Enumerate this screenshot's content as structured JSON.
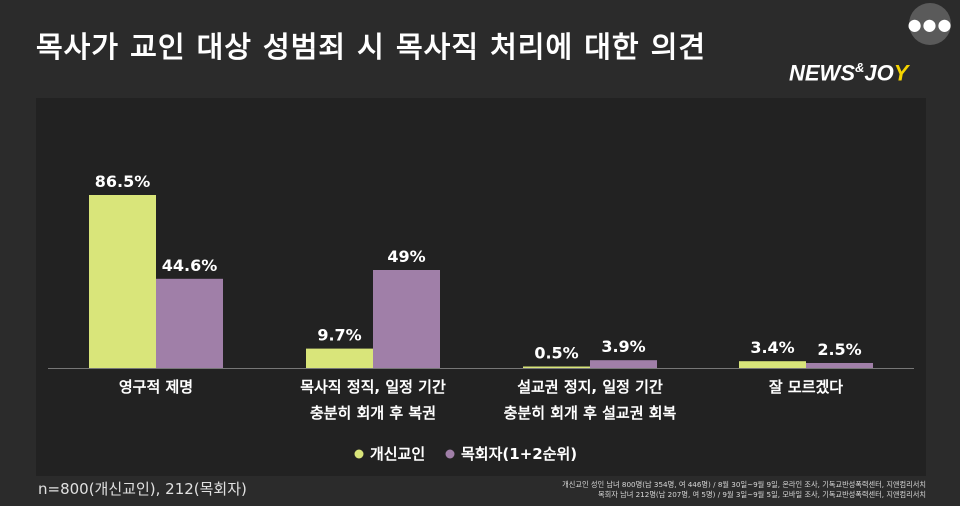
{
  "title": "목사가 교인 대상 성범죄 시 목사직 처리에 대한 의견",
  "logo": {
    "main": "NEWS",
    "amp": "&",
    "end1": "JO",
    "end2": "Y"
  },
  "menu_icon": "more-dots-icon",
  "colors": {
    "series1": "#d9e57a",
    "series2": "#a07fa8",
    "background": "#2b2b2b",
    "panel": "#222222"
  },
  "chart_data": {
    "type": "bar",
    "title": "목사가 교인 대상 성범죄 시 목사직 처리에 대한 의견",
    "categories": [
      [
        "영구적 제명"
      ],
      [
        "목사직 정직, 일정 기간",
        "충분히 회개 후 복권"
      ],
      [
        "설교권 정지, 일정 기간",
        "충분히 회개 후 설교권 회복"
      ],
      [
        "잘 모르겠다"
      ]
    ],
    "series": [
      {
        "name": "개신교인",
        "values": [
          86.5,
          9.7,
          0.5,
          3.4
        ],
        "labels": [
          "86.5%",
          "9.7%",
          "0.5%",
          "3.4%"
        ]
      },
      {
        "name": "목회자(1+2순위)",
        "values": [
          44.6,
          49,
          3.9,
          2.5
        ],
        "labels": [
          "44.6%",
          "49%",
          "3.9%",
          "2.5%"
        ]
      }
    ],
    "ylim": [
      0,
      100
    ],
    "legend": "bottom-center",
    "grid": false
  },
  "footer": {
    "sample": "n=800(개신교인), 212(목회자)",
    "source_line1": "개신교인 성인 남녀 800명(남 354명, 여 446명) / 8월 30일~9월 9일, 온라인 조사, 기독교반성폭력센터, 지앤컴리서치",
    "source_line2": "목회자 남녀 212명(남 207명, 여 5명) / 9월 3일~9월 5일, 모바일 조사, 기독교반성폭력센터, 지앤컴리서치"
  }
}
